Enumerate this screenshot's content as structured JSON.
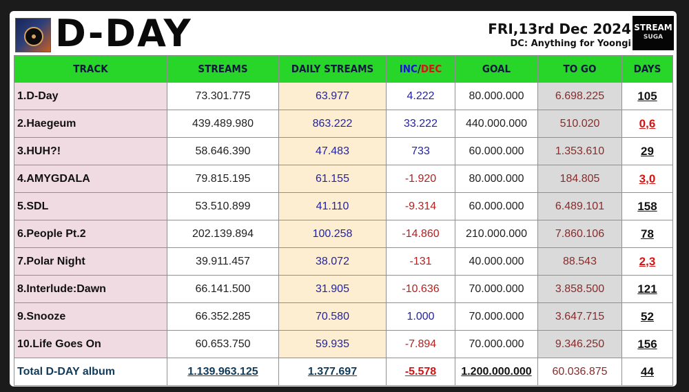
{
  "header": {
    "title": "D-DAY",
    "date": "FRI,13rd Dec 2024",
    "dc": "DC: Anything for Yoongi",
    "logo_line1": "STREAM",
    "logo_line2": "SUGA"
  },
  "columns": [
    "TRACK",
    "STREAMS",
    "DAILY STREAMS",
    "INC",
    "/",
    "DEC",
    "GOAL",
    "TO GO",
    "DAYS"
  ],
  "rows": [
    {
      "track": "1.D-Day",
      "streams": "73.301.775",
      "daily": "63.977",
      "incdec": "4.222",
      "goal": "80.000.000",
      "togo": "6.698.225",
      "days": "105"
    },
    {
      "track": "2.Haegeum",
      "streams": "439.489.980",
      "daily": "863.222",
      "incdec": "33.222",
      "goal": "440.000.000",
      "togo": "510.020",
      "days": "0,6"
    },
    {
      "track": "3.HUH?!",
      "streams": "58.646.390",
      "daily": "47.483",
      "incdec": "733",
      "goal": "60.000.000",
      "togo": "1.353.610",
      "days": "29"
    },
    {
      "track": "4.AMYGDALA",
      "streams": "79.815.195",
      "daily": "61.155",
      "incdec": "-1.920",
      "goal": "80.000.000",
      "togo": "184.805",
      "days": "3,0"
    },
    {
      "track": "5.SDL",
      "streams": "53.510.899",
      "daily": "41.110",
      "incdec": "-9.314",
      "goal": "60.000.000",
      "togo": "6.489.101",
      "days": "158"
    },
    {
      "track": "6.People Pt.2",
      "streams": "202.139.894",
      "daily": "100.258",
      "incdec": "-14.860",
      "goal": "210.000.000",
      "togo": "7.860.106",
      "days": "78"
    },
    {
      "track": "7.Polar Night",
      "streams": "39.911.457",
      "daily": "38.072",
      "incdec": "-131",
      "goal": "40.000.000",
      "togo": "88.543",
      "days": "2,3"
    },
    {
      "track": "8.Interlude:Dawn",
      "streams": "66.141.500",
      "daily": "31.905",
      "incdec": "-10.636",
      "goal": "70.000.000",
      "togo": "3.858.500",
      "days": "121"
    },
    {
      "track": "9.Snooze",
      "streams": "66.352.285",
      "daily": "70.580",
      "incdec": "1.000",
      "goal": "70.000.000",
      "togo": "3.647.715",
      "days": "52"
    },
    {
      "track": "10.Life Goes On",
      "streams": "60.653.750",
      "daily": "59.935",
      "incdec": "-7.894",
      "goal": "70.000.000",
      "togo": "9.346.250",
      "days": "156"
    }
  ],
  "total": {
    "track": "Total D-DAY album",
    "streams": "1.139.963.125",
    "daily": "1.377.697",
    "incdec": "-5.578",
    "goal": "1.200.000.000",
    "togo": "60.036.875",
    "days": "44"
  },
  "colors": {
    "header_green": "#28d62a",
    "track_pink": "#f1dbe2",
    "daily_cream": "#fdeed2",
    "togo_gray": "#dadada",
    "warn_red": "#d21414"
  }
}
